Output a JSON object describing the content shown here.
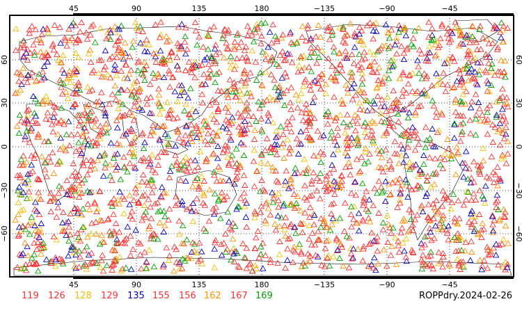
{
  "map": {
    "caption": "ROPPdry.2024-02-26",
    "top_lon_labels": [
      "45",
      "90",
      "135",
      "180",
      "−135",
      "−90",
      "−45"
    ],
    "bottom_lon_labels": [
      "45",
      "90",
      "135",
      "180",
      "−135",
      "−90",
      "−45"
    ],
    "left_lat_labels": [
      "60",
      "30",
      "0",
      "−30",
      "−60"
    ],
    "right_lat_labels": [
      "60",
      "30",
      "0",
      "−30",
      "−60"
    ],
    "marker_shape": "triangle-outline",
    "grid": "dotted"
  },
  "legend": {
    "items": [
      {
        "label": "119",
        "color": "#ff3030"
      },
      {
        "label": "126",
        "color": "#ff3030"
      },
      {
        "label": "128",
        "color": "#f0c000"
      },
      {
        "label": "129",
        "color": "#ff3030"
      },
      {
        "label": "135",
        "color": "#0000c0"
      },
      {
        "label": "155",
        "color": "#ff3030"
      },
      {
        "label": "156",
        "color": "#ff3030"
      },
      {
        "label": "162",
        "color": "#ff9000"
      },
      {
        "label": "167",
        "color": "#ff3030"
      },
      {
        "label": "169",
        "color": "#00a000"
      }
    ]
  }
}
